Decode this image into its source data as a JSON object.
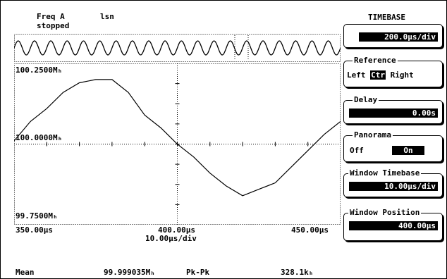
{
  "status": {
    "measurement": "Freq A",
    "mode": "lsn",
    "state": "stopped"
  },
  "plot": {
    "y_top": "100.2500Mₕ",
    "y_mid": "100.0000Mₕ",
    "y_bottom": "99.7500Mₕ",
    "x_left": "350.00µs",
    "x_center": "400.00µs",
    "x_right": "450.00µs",
    "x_scale": "10.00µs/div"
  },
  "chart_data": {
    "type": "line",
    "title": "",
    "xlabel": "",
    "ylabel": "",
    "xlim": [
      350,
      450
    ],
    "ylim": [
      99.75,
      100.25
    ],
    "x_unit": "µs",
    "y_unit": "MHz",
    "series": [
      {
        "x": [
          350,
          355,
          360,
          365,
          370,
          375,
          380,
          385,
          390,
          395,
          400,
          405,
          410,
          415,
          420,
          425,
          430,
          435,
          440,
          445,
          450
        ],
        "values": [
          100.01,
          100.07,
          100.11,
          100.16,
          100.19,
          100.2,
          100.2,
          100.16,
          100.09,
          100.05,
          100.0,
          99.96,
          99.91,
          99.87,
          99.84,
          99.86,
          99.88,
          99.93,
          99.98,
          100.03,
          100.07
        ]
      }
    ]
  },
  "measurements": {
    "mean_label": "Mean",
    "mean_value": "99.999035Mₕ",
    "pkpk_label": "Pk-Pk",
    "pkpk_value": "328.1kₕ"
  },
  "panel": {
    "title": "TIMEBASE",
    "timebase_value": "200.0µs/div",
    "reference_label": "Reference",
    "reference_left": "Left",
    "reference_ctr": "Ctr",
    "reference_right": "Right",
    "delay_label": "Delay",
    "delay_value": "0.00s",
    "panorama_label": "Panorama",
    "panorama_off": "Off",
    "panorama_on": "On",
    "window_timebase_label": "Window Timebase",
    "window_timebase_value": "10.00µs/div",
    "window_position_label": "Window Position",
    "window_position_value": "400.00µs"
  }
}
